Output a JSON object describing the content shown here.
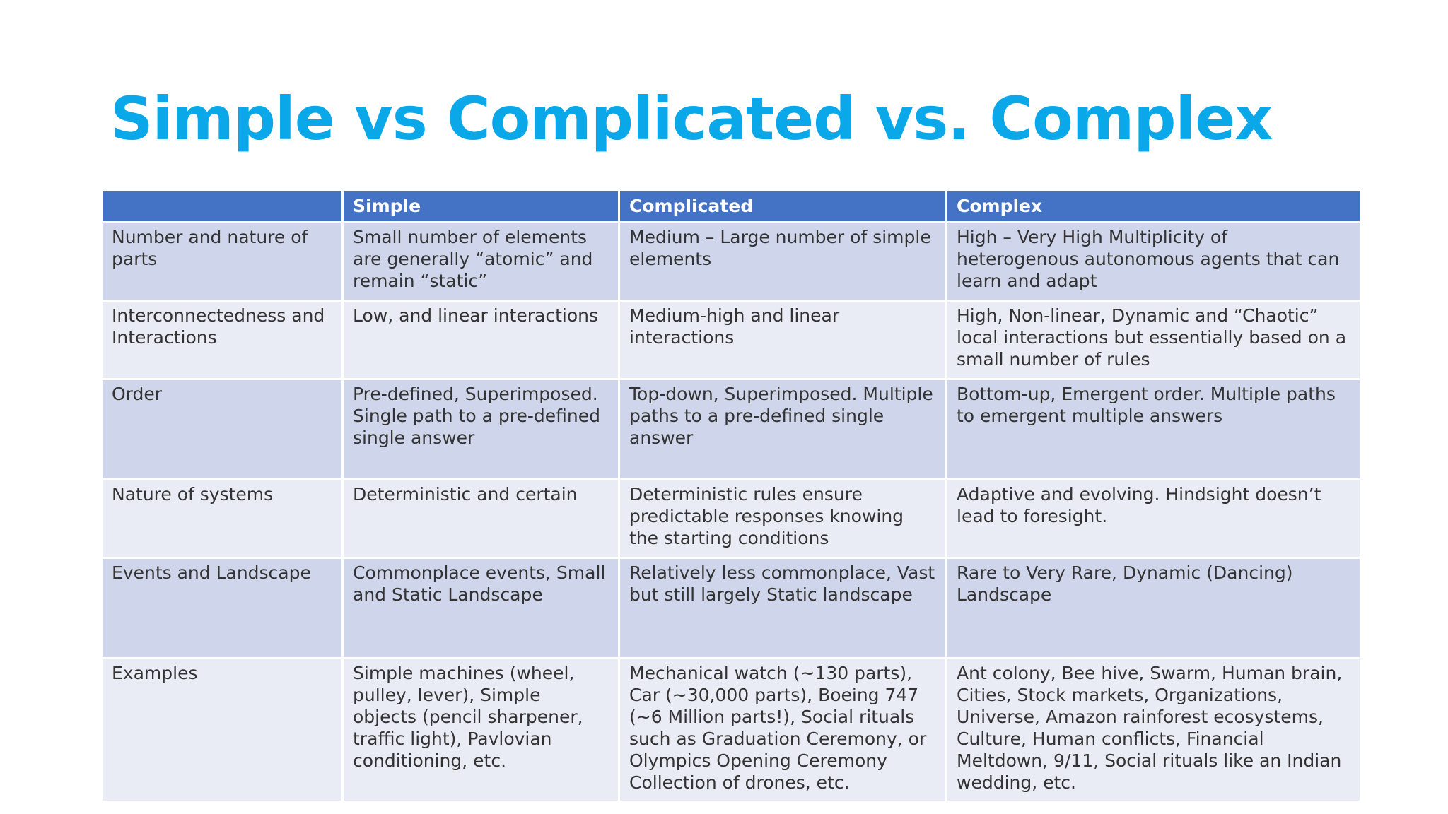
{
  "slide": {
    "title": "Simple vs Complicated vs. Complex"
  },
  "table": {
    "headers": [
      "",
      "Simple",
      "Complicated",
      "Complex"
    ],
    "rows": [
      {
        "label": "Number and nature of parts",
        "simple": "Small number of elements are generally “atomic” and remain “static”",
        "complicated": "Medium – Large number of simple elements",
        "complex": "High – Very High Multiplicity of heterogenous autonomous agents that can learn and adapt"
      },
      {
        "label": "Interconnectedness and Interactions",
        "simple": "Low, and linear interactions",
        "complicated": "Medium-high and linear interactions",
        "complex": "High, Non-linear, Dynamic and “Chaotic” local interactions but essentially based on a small number of rules"
      },
      {
        "label": "Order",
        "simple": "Pre-defined, Superimposed. Single path to a pre-defined single answer",
        "complicated": "Top-down, Superimposed. Multiple paths to a pre-defined single answer",
        "complex": "Bottom-up, Emergent order. Multiple paths to emergent multiple answers"
      },
      {
        "label": "Nature of systems",
        "simple": "Deterministic and certain",
        "complicated": "Deterministic rules ensure predictable responses knowing the starting conditions",
        "complex": "Adaptive and evolving. Hindsight doesn’t lead to foresight."
      },
      {
        "label": "Events and Landscape",
        "simple": "Commonplace events, Small and Static Landscape",
        "complicated": "Relatively less commonplace, Vast but still largely Static landscape",
        "complex": "Rare to Very Rare, Dynamic (Dancing) Landscape"
      },
      {
        "label": "Examples",
        "simple": "Simple machines (wheel, pulley, lever), Simple objects (pencil sharpener, traffic light), Pavlovian conditioning, etc.",
        "complicated": "Mechanical watch (~130 parts), Car (~30,000 parts), Boeing 747 (~6 Million parts!), Social rituals such as Graduation Ceremony, or Olympics Opening Ceremony Collection of drones, etc.",
        "complex": "Ant colony, Bee hive, Swarm, Human brain, Cities, Stock markets, Organizations, Universe, Amazon rainforest ecosystems, Culture, Human conflicts, Financial Meltdown, 9/11, Social rituals like an Indian wedding, etc."
      }
    ]
  },
  "colors": {
    "title": "#0AA8E8",
    "header_bg": "#4472C4",
    "band_dark": "#CFD5EA",
    "band_light": "#E9EBF5"
  }
}
